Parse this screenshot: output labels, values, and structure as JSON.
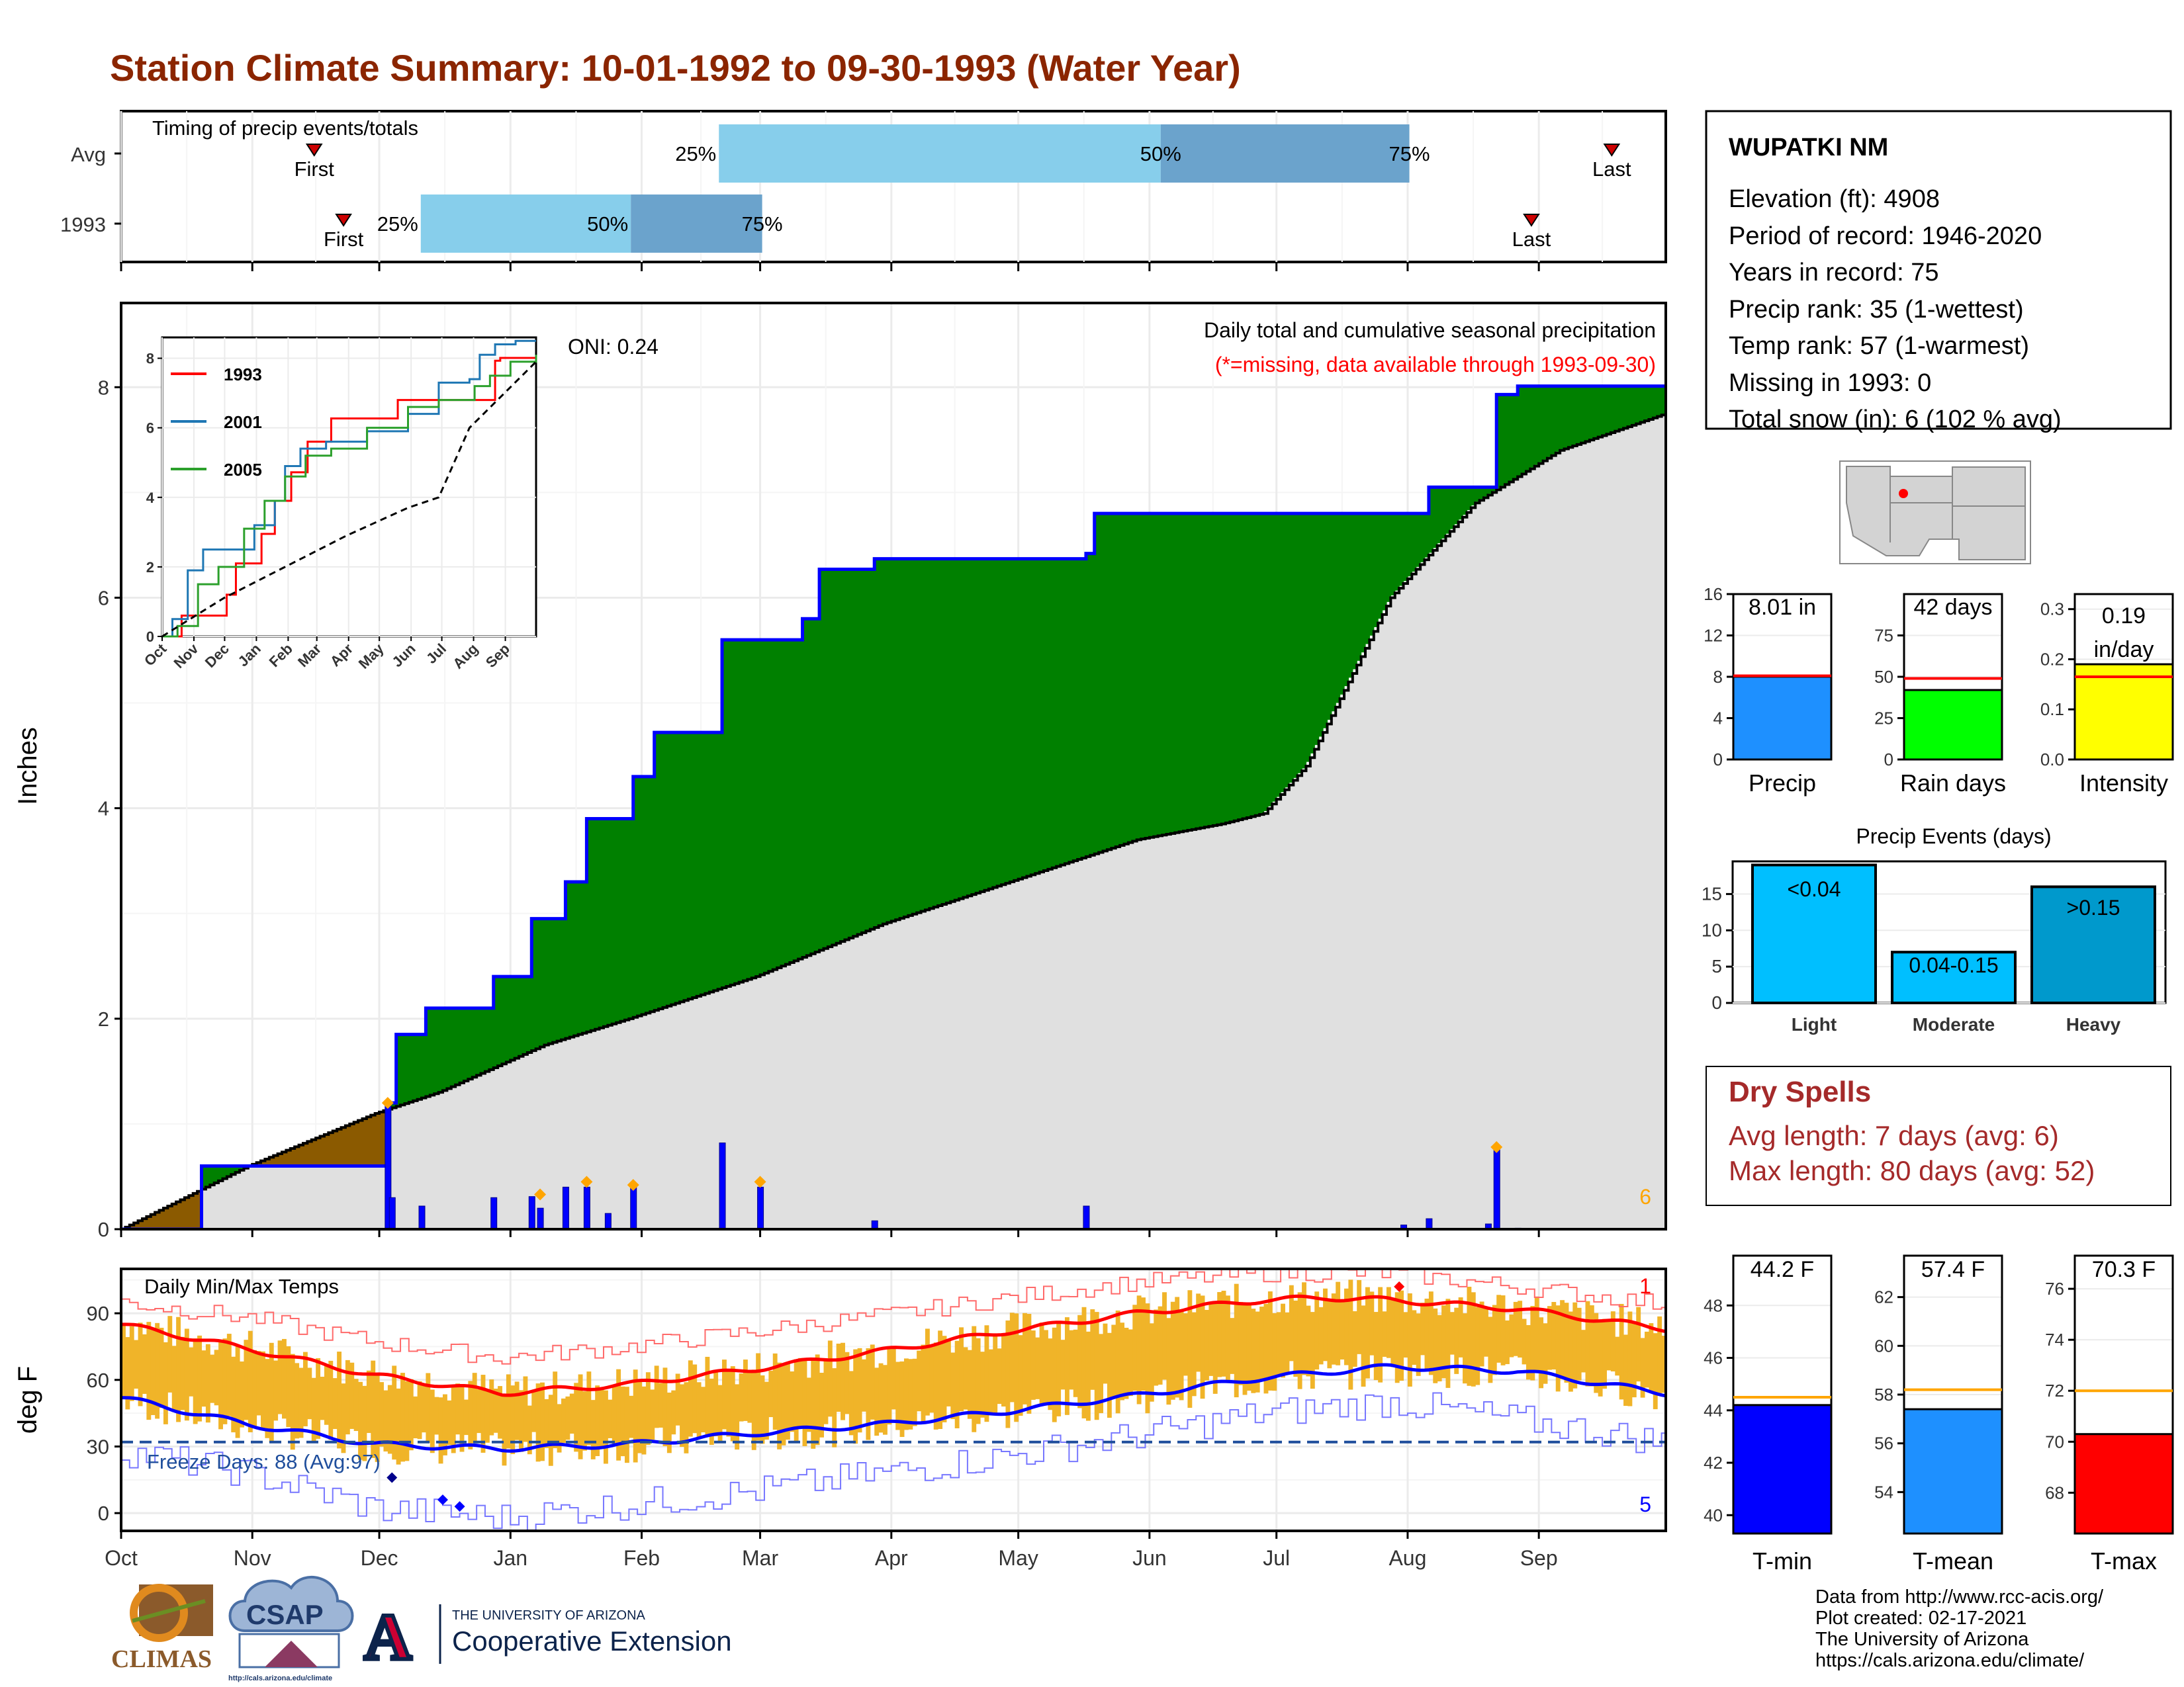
{
  "title": "Station Climate Summary: 10-01-1992 to 09-30-1993 (Water Year)",
  "colors": {
    "title": "#8B2500",
    "green": "#008000",
    "brown": "#8B5A00",
    "grey": "#E0E0E0",
    "blue": "#0000FF",
    "orange": "#FFA500",
    "light_blue": "#87CEEB",
    "mid_blue": "#6BA3CC",
    "temp_bar": "#F0B429",
    "red": "#FF0000",
    "dry_red": "#A52A2A"
  },
  "months": [
    "Oct",
    "Nov",
    "Dec",
    "Jan",
    "Feb",
    "Mar",
    "Apr",
    "May",
    "Jun",
    "Jul",
    "Aug",
    "Sep"
  ],
  "timing": {
    "title": "Timing of precip events/totals",
    "rows": [
      {
        "label": "Avg",
        "first_label": "First",
        "last_label": "Last",
        "first": 0.125,
        "last": 0.965,
        "q25": 0.387,
        "q50": 0.673,
        "q75": 0.834,
        "q25_label": "25%",
        "q50_label": "50%",
        "q75_label": "75%"
      },
      {
        "label": "1993",
        "first_label": "First",
        "last_label": "Last",
        "first": 0.144,
        "last": 0.913,
        "q25": 0.194,
        "q50": 0.33,
        "q75": 0.415,
        "q25_label": "25%",
        "q50_label": "50%",
        "q75_label": "75%"
      }
    ]
  },
  "main_chart": {
    "ylabel": "Inches",
    "title": "Daily total and cumulative seasonal precipitation",
    "subtitle": "(*=missing, data available through 1993-09-30)",
    "oni": "ONI: 0.24",
    "snow_count": "6",
    "y_ticks": [
      "0",
      "2",
      "4",
      "6",
      "8"
    ],
    "y_max": 8.8
  },
  "chart_data": [
    {
      "type": "area",
      "title": "Daily total and cumulative seasonal precipitation",
      "ylabel": "Inches",
      "ylim": [
        0,
        8.8
      ],
      "series": [
        {
          "name": "cumulative_avg",
          "days": [
            0,
            30,
            60,
            75,
            100,
            120,
            150,
            180,
            210,
            240,
            260,
            270,
            280,
            290,
            300,
            320,
            340,
            365
          ],
          "values": [
            0,
            0.6,
            1.1,
            1.3,
            1.75,
            2.0,
            2.4,
            2.9,
            3.3,
            3.7,
            3.85,
            3.95,
            4.4,
            5.2,
            6.0,
            6.9,
            7.4,
            7.75
          ]
        },
        {
          "name": "cumulative_1993",
          "steps": [
            [
              0,
              0
            ],
            [
              19,
              0.6
            ],
            [
              62,
              0.6
            ],
            [
              63,
              1.2
            ],
            [
              65,
              1.85
            ],
            [
              72,
              2.1
            ],
            [
              88,
              2.4
            ],
            [
              97,
              2.95
            ],
            [
              105,
              3.3
            ],
            [
              110,
              3.9
            ],
            [
              121,
              4.3
            ],
            [
              126,
              4.72
            ],
            [
              142,
              5.6
            ],
            [
              161,
              5.8
            ],
            [
              165,
              6.27
            ],
            [
              178,
              6.37
            ],
            [
              228,
              6.42
            ],
            [
              230,
              6.8
            ],
            [
              303,
              6.8
            ],
            [
              309,
              7.05
            ],
            [
              325,
              7.93
            ],
            [
              330,
              8.01
            ],
            [
              365,
              8.01
            ]
          ]
        },
        {
          "name": "daily",
          "days": [
            [
              63,
              1.2
            ],
            [
              64,
              0.3
            ],
            [
              71,
              0.22
            ],
            [
              88,
              0.3
            ],
            [
              97,
              0.31
            ],
            [
              99,
              0.2
            ],
            [
              105,
              0.4
            ],
            [
              110,
              0.4
            ],
            [
              115,
              0.15
            ],
            [
              121,
              0.4
            ],
            [
              142,
              0.82
            ],
            [
              151,
              0.4
            ],
            [
              178,
              0.08
            ],
            [
              228,
              0.22
            ],
            [
              303,
              0.04
            ],
            [
              309,
              0.1
            ],
            [
              323,
              0.05
            ],
            [
              325,
              0.78
            ],
            [
              330,
              0.01
            ]
          ]
        }
      ],
      "snow_days": [
        [
          63,
          1.2
        ],
        [
          99,
          0.33
        ],
        [
          110,
          0.45
        ],
        [
          121,
          0.42
        ],
        [
          151,
          0.45
        ],
        [
          325,
          0.78
        ]
      ]
    },
    {
      "type": "line",
      "title": "Inset cumulative precip",
      "x_ticks": [
        "Oct",
        "Nov",
        "Dec",
        "Jan",
        "Feb",
        "Mar",
        "Apr",
        "May",
        "Jun",
        "Jul",
        "Aug",
        "Sep"
      ],
      "y_ticks": [
        "0",
        "2",
        "4",
        "6",
        "8"
      ],
      "ylim": [
        0,
        8.6
      ],
      "series": [
        {
          "name": "1993",
          "color": "#FF0000",
          "steps": [
            [
              0,
              0
            ],
            [
              19,
              0.6
            ],
            [
              62,
              0.6
            ],
            [
              63,
              1.2
            ],
            [
              72,
              2.1
            ],
            [
              97,
              2.95
            ],
            [
              110,
              3.9
            ],
            [
              126,
              4.72
            ],
            [
              142,
              5.6
            ],
            [
              165,
              6.27
            ],
            [
              230,
              6.8
            ],
            [
              303,
              6.8
            ],
            [
              325,
              7.93
            ],
            [
              330,
              8.01
            ],
            [
              365,
              8.01
            ]
          ]
        },
        {
          "name": "2001",
          "color": "#1F77B4",
          "steps": [
            [
              0,
              0
            ],
            [
              10,
              0.5
            ],
            [
              25,
              1.9
            ],
            [
              40,
              2.5
            ],
            [
              70,
              2.5
            ],
            [
              90,
              3.2
            ],
            [
              110,
              3.9
            ],
            [
              120,
              4.9
            ],
            [
              135,
              5.4
            ],
            [
              160,
              5.6
            ],
            [
              200,
              5.9
            ],
            [
              240,
              6.4
            ],
            [
              270,
              7.3
            ],
            [
              300,
              7.4
            ],
            [
              310,
              8.1
            ],
            [
              325,
              8.4
            ],
            [
              345,
              8.5
            ],
            [
              365,
              8.5
            ]
          ]
        },
        {
          "name": "2005",
          "color": "#2CA02C",
          "steps": [
            [
              0,
              0
            ],
            [
              15,
              0.3
            ],
            [
              35,
              1.5
            ],
            [
              55,
              2.0
            ],
            [
              80,
              3.1
            ],
            [
              100,
              3.9
            ],
            [
              120,
              4.6
            ],
            [
              140,
              5.2
            ],
            [
              165,
              5.4
            ],
            [
              200,
              6.0
            ],
            [
              240,
              6.6
            ],
            [
              270,
              6.8
            ],
            [
              305,
              7.2
            ],
            [
              320,
              7.5
            ],
            [
              340,
              7.9
            ],
            [
              365,
              8.1
            ]
          ]
        },
        {
          "name": "Avg",
          "color": "#000000",
          "dashed": true,
          "days": [
            0,
            60,
            120,
            180,
            240,
            270,
            300,
            365
          ],
          "values": [
            0,
            1.1,
            2.0,
            2.9,
            3.7,
            4.0,
            6.0,
            7.9
          ]
        }
      ]
    },
    {
      "type": "bar",
      "title": "Daily Min/Max Temps",
      "ylabel": "deg F",
      "ylim": [
        -8,
        110
      ],
      "y_ticks": [
        "0",
        "30",
        "60",
        "90"
      ],
      "freeze_line": 32,
      "series": [
        {
          "name": "avg_max",
          "days": [
            0,
            30,
            60,
            90,
            120,
            150,
            180,
            210,
            240,
            270,
            285,
            300,
            330,
            365
          ],
          "values": [
            85,
            74,
            62,
            54,
            58,
            65,
            73,
            82,
            90,
            96,
            97,
            96,
            92,
            83
          ]
        },
        {
          "name": "avg_min",
          "days": [
            0,
            30,
            60,
            90,
            120,
            150,
            180,
            210,
            240,
            270,
            300,
            330,
            365
          ],
          "values": [
            52,
            40,
            31,
            29,
            31,
            36,
            40,
            46,
            53,
            61,
            66,
            64,
            54
          ]
        },
        {
          "name": "record_high",
          "days": [
            0,
            30,
            60,
            90,
            120,
            150,
            180,
            210,
            240,
            270,
            300,
            330,
            365
          ],
          "values": [
            95,
            88,
            77,
            70,
            75,
            82,
            89,
            97,
            104,
            108,
            108,
            102,
            94
          ]
        },
        {
          "name": "record_low",
          "days": [
            0,
            30,
            60,
            90,
            120,
            150,
            180,
            210,
            240,
            270,
            300,
            330,
            365
          ],
          "values": [
            28,
            18,
            2,
            -2,
            4,
            10,
            18,
            26,
            35,
            45,
            50,
            42,
            32
          ]
        }
      ],
      "record_high_count": "1",
      "record_low_count": "5"
    },
    {
      "type": "bar",
      "title": "Precip",
      "categories": [
        "Precip"
      ],
      "values": [
        8.01
      ],
      "avg": 8.1,
      "ylim": [
        0,
        16
      ],
      "y_ticks": [
        "0",
        "4",
        "8",
        "12",
        "16"
      ]
    },
    {
      "type": "bar",
      "title": "Rain days",
      "categories": [
        "Rain days"
      ],
      "values": [
        42
      ],
      "avg": 49,
      "ylim": [
        0,
        100
      ],
      "y_ticks": [
        "0",
        "25",
        "50",
        "75"
      ]
    },
    {
      "type": "bar",
      "title": "Intensity",
      "categories": [
        "Intensity"
      ],
      "values": [
        0.19
      ],
      "avg": 0.165,
      "ylim": [
        0,
        0.33
      ],
      "y_ticks": [
        "0.0",
        "0.1",
        "0.2",
        "0.3"
      ]
    },
    {
      "type": "bar",
      "title": "Precip Events (days)",
      "categories": [
        "Light",
        "Moderate",
        "Heavy"
      ],
      "values": [
        19,
        7,
        16
      ],
      "ylim": [
        0,
        19.5
      ]
    },
    {
      "type": "bar",
      "title": "T-min",
      "categories": [
        "T-min"
      ],
      "values": [
        44.2
      ],
      "avg": 44.5,
      "ylim": [
        39.3,
        49.9
      ]
    },
    {
      "type": "bar",
      "title": "T-mean",
      "categories": [
        "T-mean"
      ],
      "values": [
        57.4
      ],
      "avg": 58.2,
      "ylim": [
        52.3,
        63.7
      ]
    },
    {
      "type": "bar",
      "title": "T-max",
      "categories": [
        "T-max"
      ],
      "values": [
        70.3
      ],
      "avg": 72.0,
      "ylim": [
        66.4,
        77.3
      ]
    }
  ],
  "inset": {
    "legend": [
      "1993",
      "2001",
      "2005"
    ]
  },
  "temp_chart": {
    "title": "Daily Min/Max Temps",
    "ylabel": "deg F",
    "freeze_text": "Freeze Days: 88 (Avg:97)",
    "record_high_count": "1",
    "record_low_count": "5"
  },
  "station": {
    "name": "WUPATKI NM",
    "lines": [
      "Elevation (ft): 4908",
      "Period of record: 1946-2020",
      "Years in record: 75",
      "Precip rank: 35 (1-wettest)",
      "Temp rank: 57 (1-warmest)",
      "Missing in 1993: 0",
      "Total snow (in): 6 (102 % avg)"
    ]
  },
  "small_bars": {
    "precip": {
      "label": "Precip",
      "value_text": "8.01 in",
      "color": "#1E90FF"
    },
    "rain_days": {
      "label": "Rain days",
      "value_text": "42 days",
      "color": "#00FF00"
    },
    "intensity": {
      "label": "Intensity",
      "value_text_1": "0.19",
      "value_text_2": "in/day",
      "color": "#FFFF00"
    }
  },
  "events": {
    "title": "Precip Events (days)",
    "categories": [
      "Light",
      "Moderate",
      "Heavy"
    ],
    "labels": [
      "<0.04",
      "0.04-0.15",
      ">0.15"
    ],
    "colors": [
      "#00BFFF",
      "#00BFFF",
      "#0099CC"
    ],
    "y_ticks": [
      "0",
      "5",
      "10",
      "15"
    ]
  },
  "dry_spells": {
    "title": "Dry Spells",
    "avg_line": "Avg length: 7 days (avg: 6)",
    "max_line": "Max length: 80 days (avg: 52)"
  },
  "temp_bars": [
    {
      "label": "T-min",
      "value_text": "44.2 F",
      "color": "#0000FF",
      "ticks": [
        "40",
        "42",
        "44",
        "46",
        "48"
      ]
    },
    {
      "label": "T-mean",
      "value_text": "57.4 F",
      "color": "#1E90FF",
      "ticks": [
        "54",
        "56",
        "58",
        "60",
        "62"
      ]
    },
    {
      "label": "T-max",
      "value_text": "70.3 F",
      "color": "#FF0000",
      "ticks": [
        "68",
        "70",
        "72",
        "74",
        "76"
      ]
    }
  ],
  "footer": {
    "lines": [
      "Data from http://www.rcc-acis.org/",
      "Plot created: 02-17-2021",
      "The University of Arizona",
      "https://cals.arizona.edu/climate/"
    ],
    "climas": "CLIMAS",
    "csap": "CSAP",
    "csap_url": "http://cals.arizona.edu/climate",
    "ua_small": "THE UNIVERSITY OF ARIZONA",
    "ua_big": "Cooperative Extension",
    "ua_letter": "A"
  }
}
